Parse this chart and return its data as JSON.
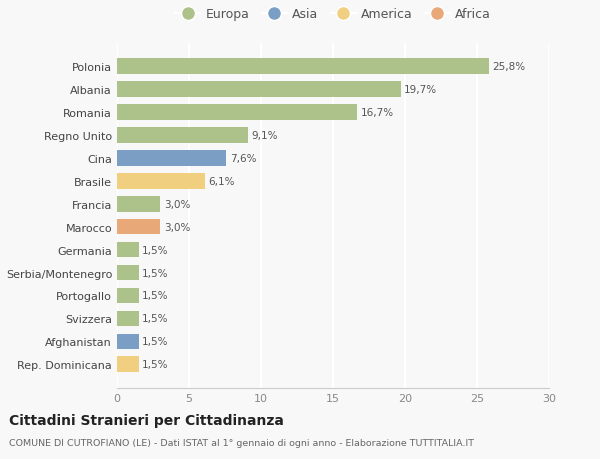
{
  "categories": [
    "Rep. Dominicana",
    "Afghanistan",
    "Svizzera",
    "Portogallo",
    "Serbia/Montenegro",
    "Germania",
    "Marocco",
    "Francia",
    "Brasile",
    "Cina",
    "Regno Unito",
    "Romania",
    "Albania",
    "Polonia"
  ],
  "values": [
    1.5,
    1.5,
    1.5,
    1.5,
    1.5,
    1.5,
    3.0,
    3.0,
    6.1,
    7.6,
    9.1,
    16.7,
    19.7,
    25.8
  ],
  "labels": [
    "1,5%",
    "1,5%",
    "1,5%",
    "1,5%",
    "1,5%",
    "1,5%",
    "3,0%",
    "3,0%",
    "6,1%",
    "7,6%",
    "9,1%",
    "16,7%",
    "19,7%",
    "25,8%"
  ],
  "continent": [
    "America",
    "Asia",
    "Europa",
    "Europa",
    "Europa",
    "Europa",
    "Africa",
    "Europa",
    "America",
    "Asia",
    "Europa",
    "Europa",
    "Europa",
    "Europa"
  ],
  "colors": {
    "Europa": "#adc18a",
    "Asia": "#7a9ec4",
    "America": "#f0d080",
    "Africa": "#e8a878"
  },
  "legend_order": [
    "Europa",
    "Asia",
    "America",
    "Africa"
  ],
  "title": "Cittadini Stranieri per Cittadinanza",
  "subtitle": "COMUNE DI CUTROFIANO (LE) - Dati ISTAT al 1° gennaio di ogni anno - Elaborazione TUTTITALIA.IT",
  "xlim": [
    0,
    30
  ],
  "xticks": [
    0,
    5,
    10,
    15,
    20,
    25,
    30
  ],
  "background_color": "#f8f8f8",
  "grid_color": "#ffffff",
  "bar_height": 0.68
}
